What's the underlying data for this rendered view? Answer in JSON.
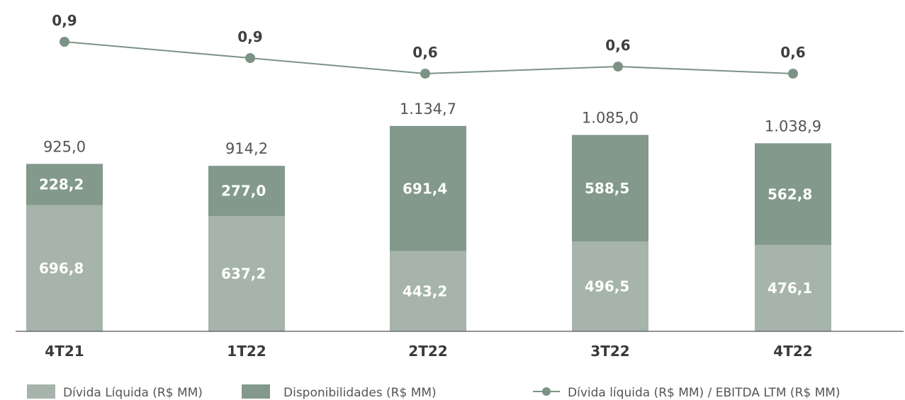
{
  "chart_data": {
    "type": "bar",
    "stacked": true,
    "categories": [
      "4T21",
      "1T22",
      "2T22",
      "3T22",
      "4T22"
    ],
    "series": [
      {
        "name": "Dívida Líquida (R$ MM)",
        "values": [
          696.8,
          637.2,
          443.2,
          496.5,
          476.1
        ],
        "labels": [
          "696,8",
          "637,2",
          "443,2",
          "496,5",
          "476,1"
        ],
        "color": "#a6b4ab"
      },
      {
        "name": "Disponibilidades (R$ MM)",
        "values": [
          228.2,
          277.0,
          691.4,
          588.5,
          562.8
        ],
        "labels": [
          "228,2",
          "277,0",
          "691,4",
          "588,5",
          "562,8"
        ],
        "color": "#82998c"
      }
    ],
    "totals": [
      925.0,
      914.2,
      1134.7,
      1085.0,
      1038.9
    ],
    "total_labels": [
      "925,0",
      "914,2",
      "1.134,7",
      "1.085,0",
      "1.038,9"
    ],
    "line_series": {
      "name": "Dívida líquida (R$ MM) / EBITDA LTM (R$ MM)",
      "values": [
        0.9,
        0.9,
        0.6,
        0.6,
        0.6
      ],
      "labels": [
        "0,9",
        "0,9",
        "0,6",
        "0,6",
        "0,6"
      ],
      "color": "#7b9385"
    },
    "legend_position": "bottom",
    "grid": false
  }
}
